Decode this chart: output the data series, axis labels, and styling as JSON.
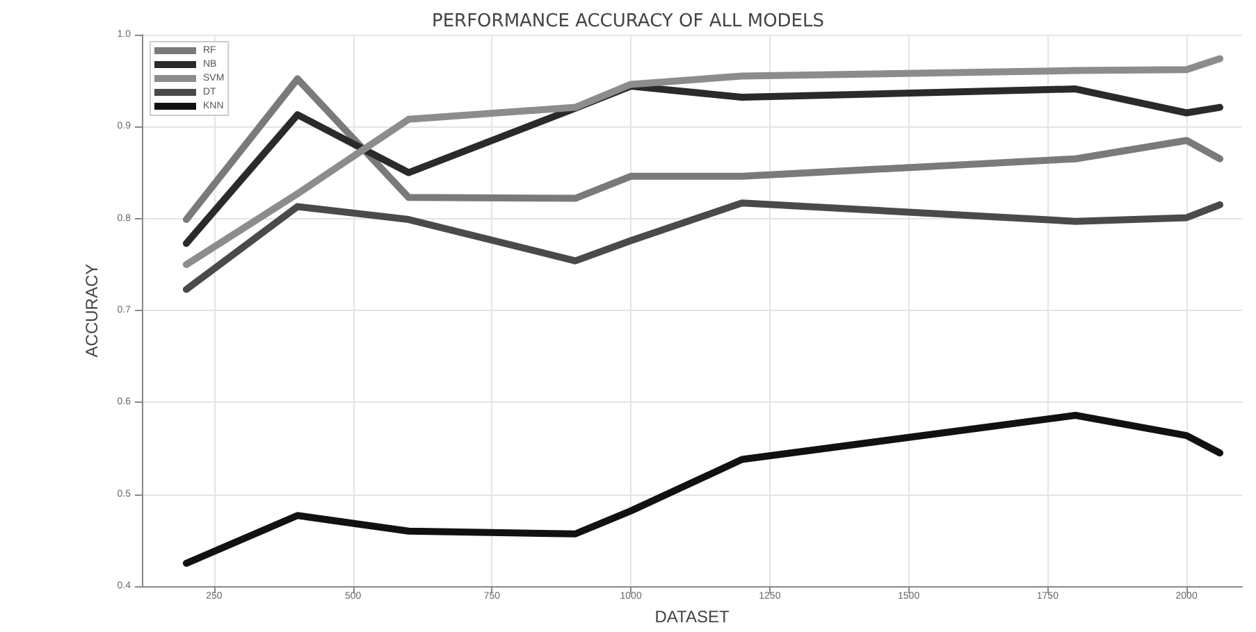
{
  "chart_data": {
    "type": "line",
    "title": "PERFORMANCE ACCURACY OF ALL MODELS",
    "xlabel": "DATASET",
    "ylabel": "ACCURACY",
    "x": [
      200,
      400,
      600,
      900,
      1000,
      1200,
      1800,
      2000,
      2060
    ],
    "series": [
      {
        "name": "RF",
        "color": "#7a7a7a",
        "values": [
          0.799,
          0.952,
          0.823,
          0.822,
          0.846,
          0.846,
          0.865,
          0.885,
          0.865
        ]
      },
      {
        "name": "NB",
        "color": "#2a2a2a",
        "values": [
          0.773,
          0.913,
          0.85,
          0.92,
          0.944,
          0.932,
          0.941,
          0.915,
          0.921
        ]
      },
      {
        "name": "SVM",
        "color": "#8c8c8c",
        "values": [
          0.75,
          0.827,
          0.908,
          0.921,
          0.946,
          0.955,
          0.961,
          0.962,
          0.974
        ]
      },
      {
        "name": "DT",
        "color": "#4a4a4a",
        "values": [
          0.723,
          0.813,
          0.799,
          0.754,
          0.776,
          0.817,
          0.797,
          0.801,
          0.815
        ]
      },
      {
        "name": "KNN",
        "color": "#111111",
        "values": [
          0.425,
          0.477,
          0.46,
          0.457,
          0.482,
          0.538,
          0.586,
          0.564,
          0.545
        ]
      }
    ],
    "xlim": [
      120,
      2100
    ],
    "xticks": [
      250,
      500,
      750,
      1000,
      1250,
      1500,
      1750,
      2000
    ],
    "ylim": [
      0.4,
      1.0
    ],
    "yticks": [
      0.4,
      0.5,
      0.6,
      0.7,
      0.8,
      0.9,
      {
        "value": 1.0,
        "label": "1.0"
      }
    ],
    "grid": true,
    "legend": "top left",
    "marker": "none",
    "line_style": "solid"
  }
}
